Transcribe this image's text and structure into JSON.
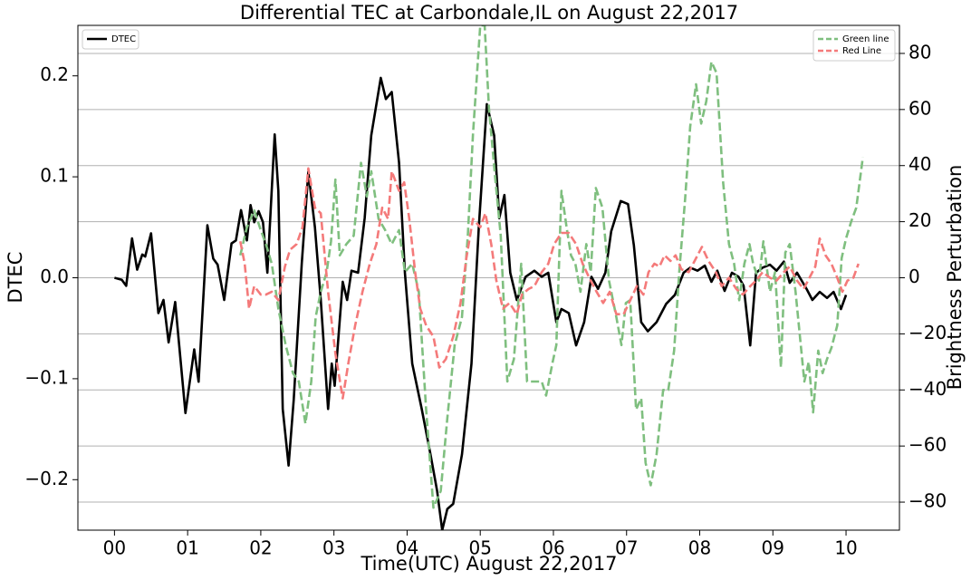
{
  "chart_data": {
    "type": "line",
    "title": "Differential TEC at Carbondale,IL on August 22,2017",
    "x_label": "Time(UTC) August 22,2017",
    "y_label": "DTEC",
    "y2_label": "Brightness Perturbation",
    "xlim": [
      -0.5,
      10.73
    ],
    "ylim": [
      -0.25,
      0.25
    ],
    "y2lim": [
      -90,
      90
    ],
    "xticks": [
      {
        "value": 0,
        "label": "00"
      },
      {
        "value": 1,
        "label": "01"
      },
      {
        "value": 2,
        "label": "02"
      },
      {
        "value": 3,
        "label": "03"
      },
      {
        "value": 4,
        "label": "04"
      },
      {
        "value": 5,
        "label": "05"
      },
      {
        "value": 6,
        "label": "06"
      },
      {
        "value": 7,
        "label": "07"
      },
      {
        "value": 8,
        "label": "08"
      },
      {
        "value": 9,
        "label": "09"
      },
      {
        "value": 10,
        "label": "10"
      }
    ],
    "yticks": [
      {
        "value": -0.2,
        "label": "−0.2"
      },
      {
        "value": -0.1,
        "label": "−0.1"
      },
      {
        "value": 0,
        "label": "0.0"
      },
      {
        "value": 0.1,
        "label": "0.1"
      },
      {
        "value": 0.2,
        "label": "0.2"
      }
    ],
    "y2ticks": [
      {
        "value": -80,
        "label": "−80"
      },
      {
        "value": -60,
        "label": "−60"
      },
      {
        "value": -40,
        "label": "−40"
      },
      {
        "value": -20,
        "label": "−20"
      },
      0,
      20,
      40,
      60,
      80
    ],
    "grid_axis": "y2",
    "legend_loc": "upper left",
    "legend2_loc": "upper right",
    "series": [
      {
        "name": "DTEC",
        "color": "#000000",
        "dashed": false,
        "x": [
          0,
          0.1,
          0.16,
          0.24,
          0.31,
          0.38,
          0.42,
          0.5,
          0.6,
          0.67,
          0.74,
          0.83,
          0.97,
          1.09,
          1.15,
          1.27,
          1.35,
          1.41,
          1.5,
          1.6,
          1.66,
          1.73,
          1.81,
          1.86,
          1.91,
          1.97,
          2.03,
          2.09,
          2.19,
          2.24,
          2.3,
          2.38,
          2.45,
          2.56,
          2.65,
          2.74,
          2.82,
          2.92,
          2.97,
          3.01,
          3.12,
          3.18,
          3.24,
          3.33,
          3.42,
          3.51,
          3.64,
          3.71,
          3.79,
          3.89,
          3.97,
          4.07,
          4.2,
          4.32,
          4.41,
          4.48,
          4.55,
          4.63,
          4.75,
          4.88,
          4.98,
          5.09,
          5.19,
          5.26,
          5.33,
          5.41,
          5.5,
          5.62,
          5.74,
          5.84,
          5.93,
          6.04,
          6.11,
          6.21,
          6.31,
          6.42,
          6.52,
          6.61,
          6.71,
          6.79,
          6.92,
          7.02,
          7.1,
          7.2,
          7.29,
          7.41,
          7.54,
          7.66,
          7.78,
          7.87,
          7.97,
          8.07,
          8.16,
          8.24,
          8.34,
          8.44,
          8.53,
          8.6,
          8.69,
          8.77,
          8.86,
          8.96,
          9.05,
          9.15,
          9.23,
          9.33,
          9.46,
          9.54,
          9.64,
          9.74,
          9.83,
          9.93,
          10.0
        ],
        "values": [
          0,
          -0.002,
          -0.008,
          0.039,
          0.008,
          0.023,
          0.021,
          0.044,
          -0.035,
          -0.022,
          -0.064,
          -0.024,
          -0.134,
          -0.071,
          -0.103,
          0.052,
          0.019,
          0.013,
          -0.022,
          0.034,
          0.037,
          0.067,
          0.037,
          0.072,
          0.055,
          0.066,
          0.055,
          0.005,
          0.142,
          0.086,
          -0.13,
          -0.186,
          -0.121,
          0.014,
          0.105,
          0.05,
          -0.022,
          -0.13,
          -0.085,
          -0.107,
          -0.004,
          -0.022,
          0.007,
          0.005,
          0.059,
          0.141,
          0.198,
          0.177,
          0.184,
          0.114,
          0.005,
          -0.085,
          -0.13,
          -0.175,
          -0.211,
          -0.25,
          -0.229,
          -0.224,
          -0.175,
          -0.085,
          0.05,
          0.172,
          0.141,
          0.059,
          0.082,
          0.005,
          -0.022,
          0.001,
          0.007,
          0.001,
          0.005,
          -0.044,
          -0.031,
          -0.035,
          -0.067,
          -0.044,
          0.001,
          -0.011,
          0.005,
          0.046,
          0.076,
          0.073,
          0.032,
          -0.044,
          -0.053,
          -0.044,
          -0.026,
          -0.017,
          0.005,
          0.01,
          0.007,
          0.012,
          -0.004,
          0.007,
          -0.013,
          0.005,
          0.001,
          -0.008,
          -0.067,
          0.005,
          0.01,
          0.013,
          0.007,
          0.016,
          -0.005,
          0.005,
          -0.011,
          -0.022,
          -0.014,
          -0.02,
          -0.014,
          -0.031,
          -0.017
        ]
      },
      {
        "name": "Green line",
        "color": "#7fbf7f",
        "dashed": true,
        "axis": "y2",
        "x": [
          1.72,
          1.81,
          1.91,
          2.0,
          2.07,
          2.15,
          2.24,
          2.34,
          2.44,
          2.52,
          2.61,
          2.69,
          2.75,
          2.82,
          2.9,
          2.96,
          3.02,
          3.08,
          3.17,
          3.27,
          3.37,
          3.45,
          3.51,
          3.61,
          3.7,
          3.79,
          3.89,
          3.97,
          4.07,
          4.16,
          4.26,
          4.36,
          4.46,
          4.55,
          4.65,
          4.75,
          4.83,
          4.9,
          5.0,
          5.06,
          5.12,
          5.21,
          5.28,
          5.37,
          5.46,
          5.56,
          5.64,
          5.74,
          5.84,
          5.9,
          5.99,
          6.04,
          6.11,
          6.18,
          6.24,
          6.3,
          6.37,
          6.45,
          6.51,
          6.58,
          6.67,
          6.76,
          6.86,
          6.93,
          6.99,
          7.05,
          7.13,
          7.2,
          7.26,
          7.33,
          7.41,
          7.5,
          7.57,
          7.65,
          7.72,
          7.8,
          7.87,
          7.95,
          8.02,
          8.09,
          8.16,
          8.23,
          8.32,
          8.4,
          8.47,
          8.54,
          8.61,
          8.68,
          8.73,
          8.81,
          8.87,
          8.96,
          9.03,
          9.11,
          9.17,
          9.23,
          9.31,
          9.37,
          9.43,
          9.49,
          9.55,
          9.62,
          9.68,
          9.74,
          9.8,
          9.88,
          9.94,
          10.0,
          10.07,
          10.14,
          10.23
        ],
        "values": [
          8,
          18,
          24,
          17,
          12,
          5,
          -11,
          -24,
          -34,
          -37,
          -52,
          -37,
          -14,
          -5,
          2,
          13,
          35,
          8,
          12,
          15,
          41,
          29,
          38,
          21,
          17,
          12,
          17,
          2,
          5,
          -5,
          -47,
          -82,
          -76,
          -50,
          -24,
          -14,
          15,
          51,
          90,
          90,
          60,
          34,
          15,
          -37,
          -29,
          5,
          -37,
          -37,
          -37,
          -42,
          -30,
          -24,
          31,
          18,
          8,
          5,
          -5,
          12,
          2,
          32,
          25,
          -1,
          -14,
          -24,
          -9,
          -8,
          -47,
          -43,
          -66,
          -74,
          -63,
          -40,
          -40,
          -26,
          2,
          28,
          54,
          69,
          55,
          63,
          77,
          73,
          34,
          12,
          5,
          -8,
          5,
          12,
          5,
          -1,
          13,
          -5,
          2,
          -32,
          9,
          12,
          -5,
          -21,
          -37,
          -30,
          -48,
          -26,
          -34,
          -29,
          -25,
          -17,
          7,
          14,
          20,
          25,
          43
        ]
      },
      {
        "name": "Red Line",
        "color": "#f47a7a",
        "dashed": true,
        "axis": "y2",
        "x": [
          1.72,
          1.78,
          1.84,
          1.91,
          2.0,
          2.07,
          2.15,
          2.24,
          2.33,
          2.4,
          2.49,
          2.57,
          2.65,
          2.74,
          2.82,
          2.92,
          3.02,
          3.12,
          3.2,
          3.29,
          3.39,
          3.49,
          3.58,
          3.66,
          3.74,
          3.79,
          3.89,
          3.96,
          4.03,
          4.11,
          4.18,
          4.26,
          4.36,
          4.44,
          4.53,
          4.63,
          4.73,
          4.81,
          4.9,
          5.0,
          5.07,
          5.15,
          5.22,
          5.31,
          5.4,
          5.5,
          5.57,
          5.66,
          5.74,
          5.84,
          5.93,
          6.01,
          6.11,
          6.21,
          6.31,
          6.4,
          6.49,
          6.59,
          6.68,
          6.77,
          6.86,
          6.96,
          7.05,
          7.14,
          7.23,
          7.3,
          7.38,
          7.45,
          7.52,
          7.6,
          7.67,
          7.75,
          7.85,
          7.95,
          8.03,
          8.12,
          8.22,
          8.3,
          8.4,
          8.5,
          8.59,
          8.69,
          8.77,
          8.86,
          8.96,
          9.05,
          9.15,
          9.23,
          9.33,
          9.42,
          9.5,
          9.58,
          9.64,
          9.72,
          9.8,
          9.88,
          9.95,
          10.02,
          10.1,
          10.17
        ],
        "values": [
          13,
          5,
          -11,
          -3,
          -6,
          -6,
          -5,
          -8,
          4,
          10,
          12,
          18,
          39,
          25,
          23,
          -5,
          -27,
          -43,
          -30,
          -17,
          -5,
          5,
          12,
          25,
          21,
          38,
          31,
          34,
          21,
          2,
          -11,
          -17,
          -21,
          -32,
          -29,
          -21,
          -9,
          7,
          21,
          18,
          23,
          12,
          -1,
          -11,
          -9,
          -13,
          -6,
          -4,
          -3,
          2,
          5,
          12,
          16,
          16,
          12,
          5,
          0,
          -5,
          -9,
          -5,
          -13,
          -13,
          -8,
          -3,
          -6,
          2,
          5,
          4,
          8,
          6,
          8,
          3,
          2,
          7,
          11,
          6,
          2,
          -3,
          0,
          -4,
          -6,
          -3,
          -1,
          2,
          0,
          -1,
          2,
          4,
          -1,
          -4,
          0,
          4,
          14,
          8,
          5,
          0,
          -5,
          -1,
          0,
          5
        ]
      }
    ]
  }
}
